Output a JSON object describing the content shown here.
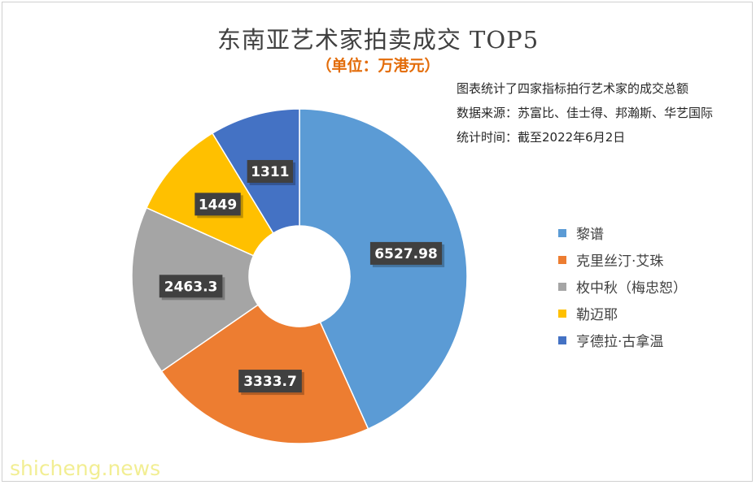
{
  "chart_data": {
    "type": "pie",
    "donut": true,
    "title": "东南亚艺术家拍卖成交 TOP5",
    "subtitle": "（单位：万港元）",
    "categories": [
      "黎谱",
      "克里丝汀·艾珠",
      "枚中秋（梅忠恕）",
      "勒迈耶",
      "亨德拉·古拿温"
    ],
    "values": [
      6527.98,
      3333.7,
      2463.3,
      1449,
      1311
    ],
    "value_labels": [
      "6527.98",
      "3333.7",
      "2463.3",
      "1449",
      "1311"
    ],
    "colors": [
      "#5b9bd5",
      "#ed7d31",
      "#a5a5a5",
      "#ffc000",
      "#4472c4"
    ],
    "legend_position": "right"
  },
  "notes": [
    "图表统计了四家指标拍行艺术家的成交总额",
    "数据来源：苏富比、佳士得、邦瀚斯、华艺国际",
    "统计时间：截至2022年6月2日"
  ],
  "watermark": "shicheng.news"
}
